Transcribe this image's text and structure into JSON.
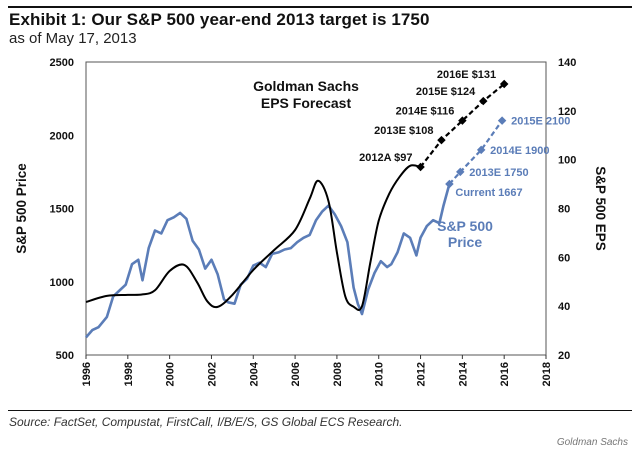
{
  "header": {
    "title": "Exhibit 1: Our S&P 500 year-end 2013 target is 1750",
    "subtitle": "as of May 17, 2013"
  },
  "footer": {
    "source": "Source: FactSet, Compustat, FirstCall, I/B/E/S, GS Global ECS Research.",
    "brand": "Goldman Sachs"
  },
  "colors": {
    "price": "#5b7db8",
    "eps": "#000000",
    "axis": "#333333"
  },
  "chart_data": {
    "type": "line",
    "title": "Exhibit 1: Our S&P 500 year-end 2013 target is 1750",
    "xlabel": "",
    "ylabel": "S&P 500 Price",
    "y2label": "S&P 500 EPS",
    "xlim": [
      1996,
      2018
    ],
    "ylim": [
      500,
      2500
    ],
    "y2lim": [
      20,
      140
    ],
    "x_ticks": [
      "1996",
      "1998",
      "2000",
      "2002",
      "2004",
      "2006",
      "2008",
      "2010",
      "2012",
      "2014",
      "2016",
      "2018"
    ],
    "y_ticks": [
      "500",
      "1000",
      "1500",
      "2000",
      "2500"
    ],
    "y2_ticks": [
      "20",
      "40",
      "60",
      "80",
      "100",
      "120",
      "140"
    ],
    "grid": false,
    "series": [
      {
        "name": "S&P 500 Price",
        "axis": "left",
        "x": [
          1996.0,
          1996.3,
          1996.6,
          1997.0,
          1997.3,
          1997.6,
          1997.9,
          1998.2,
          1998.5,
          1998.7,
          1999.0,
          1999.3,
          1999.6,
          1999.9,
          2000.2,
          2000.5,
          2000.8,
          2001.1,
          2001.4,
          2001.7,
          2002.0,
          2002.3,
          2002.6,
          2002.8,
          2003.1,
          2003.4,
          2003.7,
          2004.0,
          2004.3,
          2004.6,
          2004.9,
          2005.2,
          2005.5,
          2005.8,
          2006.1,
          2006.4,
          2006.7,
          2007.0,
          2007.3,
          2007.6,
          2007.9,
          2008.2,
          2008.5,
          2008.8,
          2009.0,
          2009.2,
          2009.5,
          2009.8,
          2010.1,
          2010.4,
          2010.6,
          2010.9,
          2011.2,
          2011.5,
          2011.8,
          2012.0,
          2012.3,
          2012.6,
          2012.9,
          2013.1,
          2013.38
        ],
        "values": [
          620,
          670,
          690,
          760,
          900,
          940,
          980,
          1120,
          1150,
          1010,
          1230,
          1350,
          1330,
          1420,
          1440,
          1470,
          1430,
          1280,
          1220,
          1090,
          1150,
          1050,
          880,
          860,
          850,
          980,
          1020,
          1110,
          1130,
          1100,
          1190,
          1200,
          1220,
          1230,
          1270,
          1300,
          1320,
          1420,
          1480,
          1520,
          1460,
          1380,
          1270,
          960,
          850,
          780,
          950,
          1060,
          1140,
          1100,
          1120,
          1200,
          1330,
          1300,
          1180,
          1300,
          1380,
          1420,
          1400,
          1520,
          1667
        ]
      },
      {
        "name": "S&P 500 EPS",
        "axis": "right",
        "x": [
          1996.0,
          1997.0,
          1998.0,
          1998.7,
          1999.3,
          2000.0,
          2000.7,
          2001.3,
          2001.8,
          2002.3,
          2003.0,
          2004.0,
          2005.0,
          2006.0,
          2006.7,
          2007.1,
          2007.6,
          2008.0,
          2008.4,
          2008.8,
          2009.2,
          2009.6,
          2010.0,
          2010.5,
          2011.0,
          2011.5,
          2012.0
        ],
        "values": [
          41.7,
          44.2,
          44.6,
          44.8,
          46.5,
          54.4,
          56.9,
          50.0,
          42.0,
          39.7,
          44.6,
          54.8,
          63.0,
          71.2,
          84.0,
          91.4,
          83.0,
          62.0,
          44.0,
          39.8,
          40.0,
          58.0,
          75.0,
          86.0,
          93.0,
          97.5,
          97.0
        ]
      },
      {
        "name": "GS EPS Forecast",
        "axis": "right",
        "style": "dashed",
        "x": [
          2012,
          2013,
          2014,
          2015,
          2016
        ],
        "values": [
          97,
          108,
          116,
          124,
          131
        ],
        "labels": [
          "2012A $97",
          "2013E $108",
          "2014E $116",
          "2015E $124",
          "2016E $131"
        ]
      },
      {
        "name": "S&P 500 Price Target",
        "axis": "left",
        "style": "dashed",
        "x": [
          2013.38,
          2013.9,
          2014.9,
          2015.9
        ],
        "values": [
          1667,
          1750,
          1900,
          2100
        ],
        "labels": [
          "Current 1667",
          "2013E 1750",
          "2014E 1900",
          "2015E 2100"
        ]
      }
    ],
    "annotations": [
      {
        "text_lines": [
          "Goldman Sachs",
          "EPS Forecast"
        ],
        "color": "black"
      },
      {
        "text_lines": [
          "S&P 500",
          "Price"
        ],
        "color": "blue"
      }
    ],
    "legend": "none"
  }
}
